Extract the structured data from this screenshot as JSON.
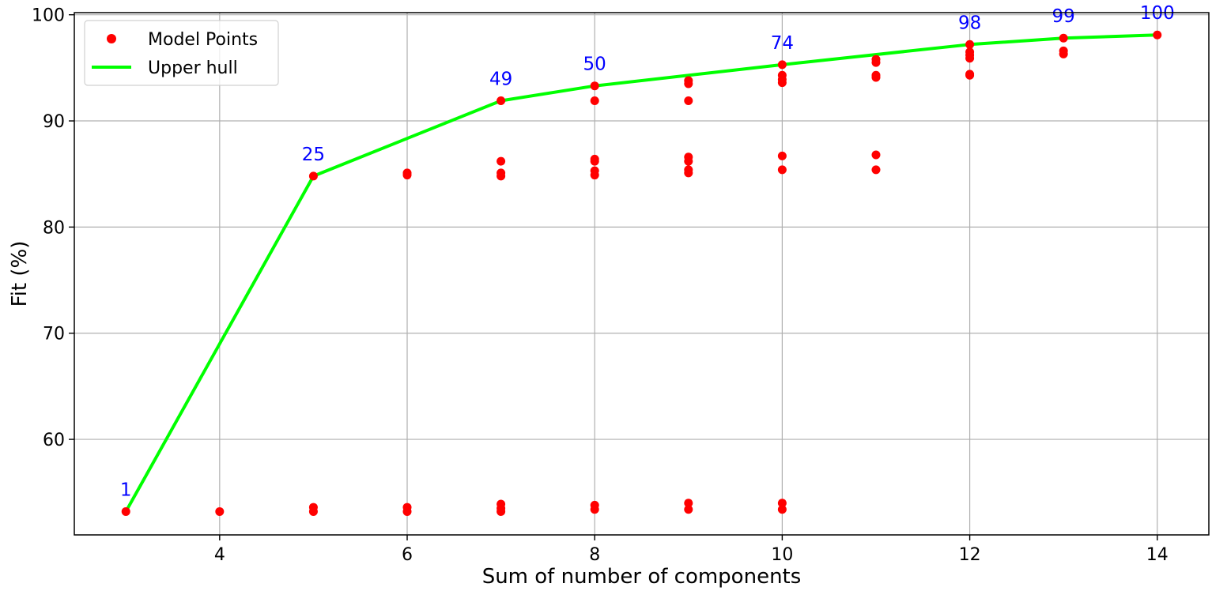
{
  "chart_data": {
    "type": "scatter",
    "xlabel": "Sum of number of components",
    "ylabel": "Fit (%)",
    "xlim": [
      2.45,
      14.55
    ],
    "ylim": [
      51.0,
      100.2
    ],
    "x_ticks": [
      4,
      6,
      8,
      10,
      12,
      14
    ],
    "y_ticks": [
      60,
      70,
      80,
      90,
      100
    ],
    "grid": true,
    "legend_position": "top-left",
    "colors": {
      "points": "#ff0000",
      "hull": "#00ff00",
      "annotations": "#0000ff",
      "grid": "#b0b0b0"
    },
    "legend": [
      {
        "label": "Model Points",
        "kind": "marker"
      },
      {
        "label": "Upper hull",
        "kind": "line"
      }
    ],
    "series": [
      {
        "name": "Model Points",
        "kind": "scatter",
        "points": [
          [
            3,
            53.2
          ],
          [
            4,
            53.2
          ],
          [
            5,
            53.2
          ],
          [
            5,
            53.6
          ],
          [
            5,
            84.8
          ],
          [
            6,
            53.2
          ],
          [
            6,
            53.6
          ],
          [
            6,
            84.9
          ],
          [
            6,
            85.1
          ],
          [
            7,
            53.2
          ],
          [
            7,
            53.5
          ],
          [
            7,
            53.9
          ],
          [
            7,
            84.8
          ],
          [
            7,
            85.1
          ],
          [
            7,
            86.2
          ],
          [
            7,
            91.9
          ],
          [
            8,
            53.4
          ],
          [
            8,
            53.8
          ],
          [
            8,
            84.9
          ],
          [
            8,
            85.3
          ],
          [
            8,
            86.2
          ],
          [
            8,
            86.4
          ],
          [
            8,
            91.9
          ],
          [
            8,
            93.3
          ],
          [
            9,
            53.4
          ],
          [
            9,
            54.0
          ],
          [
            9,
            85.1
          ],
          [
            9,
            85.4
          ],
          [
            9,
            86.2
          ],
          [
            9,
            86.6
          ],
          [
            9,
            91.9
          ],
          [
            9,
            93.5
          ],
          [
            9,
            93.8
          ],
          [
            10,
            53.4
          ],
          [
            10,
            54.0
          ],
          [
            10,
            85.4
          ],
          [
            10,
            86.7
          ],
          [
            10,
            93.6
          ],
          [
            10,
            93.9
          ],
          [
            10,
            94.3
          ],
          [
            10,
            95.3
          ],
          [
            11,
            85.4
          ],
          [
            11,
            86.8
          ],
          [
            11,
            94.1
          ],
          [
            11,
            94.3
          ],
          [
            11,
            95.5
          ],
          [
            11,
            95.8
          ],
          [
            12,
            94.3
          ],
          [
            12,
            94.4
          ],
          [
            12,
            95.9
          ],
          [
            12,
            96.2
          ],
          [
            12,
            96.5
          ],
          [
            12,
            97.2
          ],
          [
            13,
            96.3
          ],
          [
            13,
            96.6
          ],
          [
            13,
            97.8
          ],
          [
            14,
            98.1
          ]
        ]
      },
      {
        "name": "Upper hull",
        "kind": "line",
        "x": [
          3,
          5,
          7,
          8,
          10,
          12,
          13,
          14
        ],
        "y": [
          53.2,
          84.8,
          91.9,
          93.3,
          95.3,
          97.2,
          97.8,
          98.1
        ]
      }
    ],
    "annotations": [
      {
        "text": "1",
        "x": 3,
        "y": 53.2
      },
      {
        "text": "25",
        "x": 5,
        "y": 84.8
      },
      {
        "text": "49",
        "x": 7,
        "y": 91.9
      },
      {
        "text": "50",
        "x": 8,
        "y": 93.3
      },
      {
        "text": "74",
        "x": 10,
        "y": 95.3
      },
      {
        "text": "98",
        "x": 12,
        "y": 97.2
      },
      {
        "text": "99",
        "x": 13,
        "y": 97.8
      },
      {
        "text": "100",
        "x": 14,
        "y": 98.1
      }
    ]
  }
}
